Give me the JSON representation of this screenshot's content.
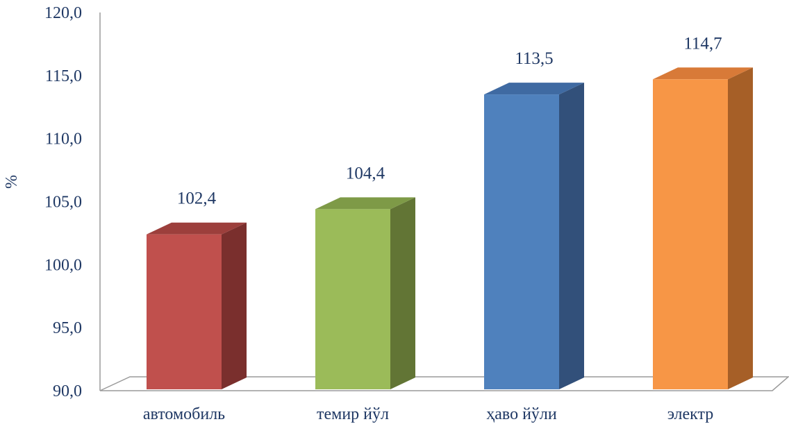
{
  "chart_data": {
    "type": "bar",
    "style": "3d-columns",
    "categories": [
      "автомобиль",
      "темир йўл",
      "ҳаво йўли",
      "электр"
    ],
    "values": [
      102.4,
      104.4,
      113.5,
      114.7
    ],
    "data_labels": [
      "102,4",
      "104,4",
      "113,5",
      "114,7"
    ],
    "colors": [
      "#c0504d",
      "#9bbb59",
      "#4f81bd",
      "#f79646"
    ],
    "side_colors": [
      "#7a2f2d",
      "#627535",
      "#32507a",
      "#a65f27"
    ],
    "top_colors": [
      "#9c3f3c",
      "#7e9a47",
      "#3f6aa2",
      "#d87a38"
    ],
    "ylabel": "%",
    "ylim": [
      90.0,
      120.0
    ],
    "y_ticks": [
      "90,0",
      "95,0",
      "100,0",
      "105,0",
      "110,0",
      "115,0",
      "120,0"
    ],
    "y_tick_values": [
      90,
      95,
      100,
      105,
      110,
      115,
      120
    ],
    "grid": false,
    "legend": "none"
  }
}
